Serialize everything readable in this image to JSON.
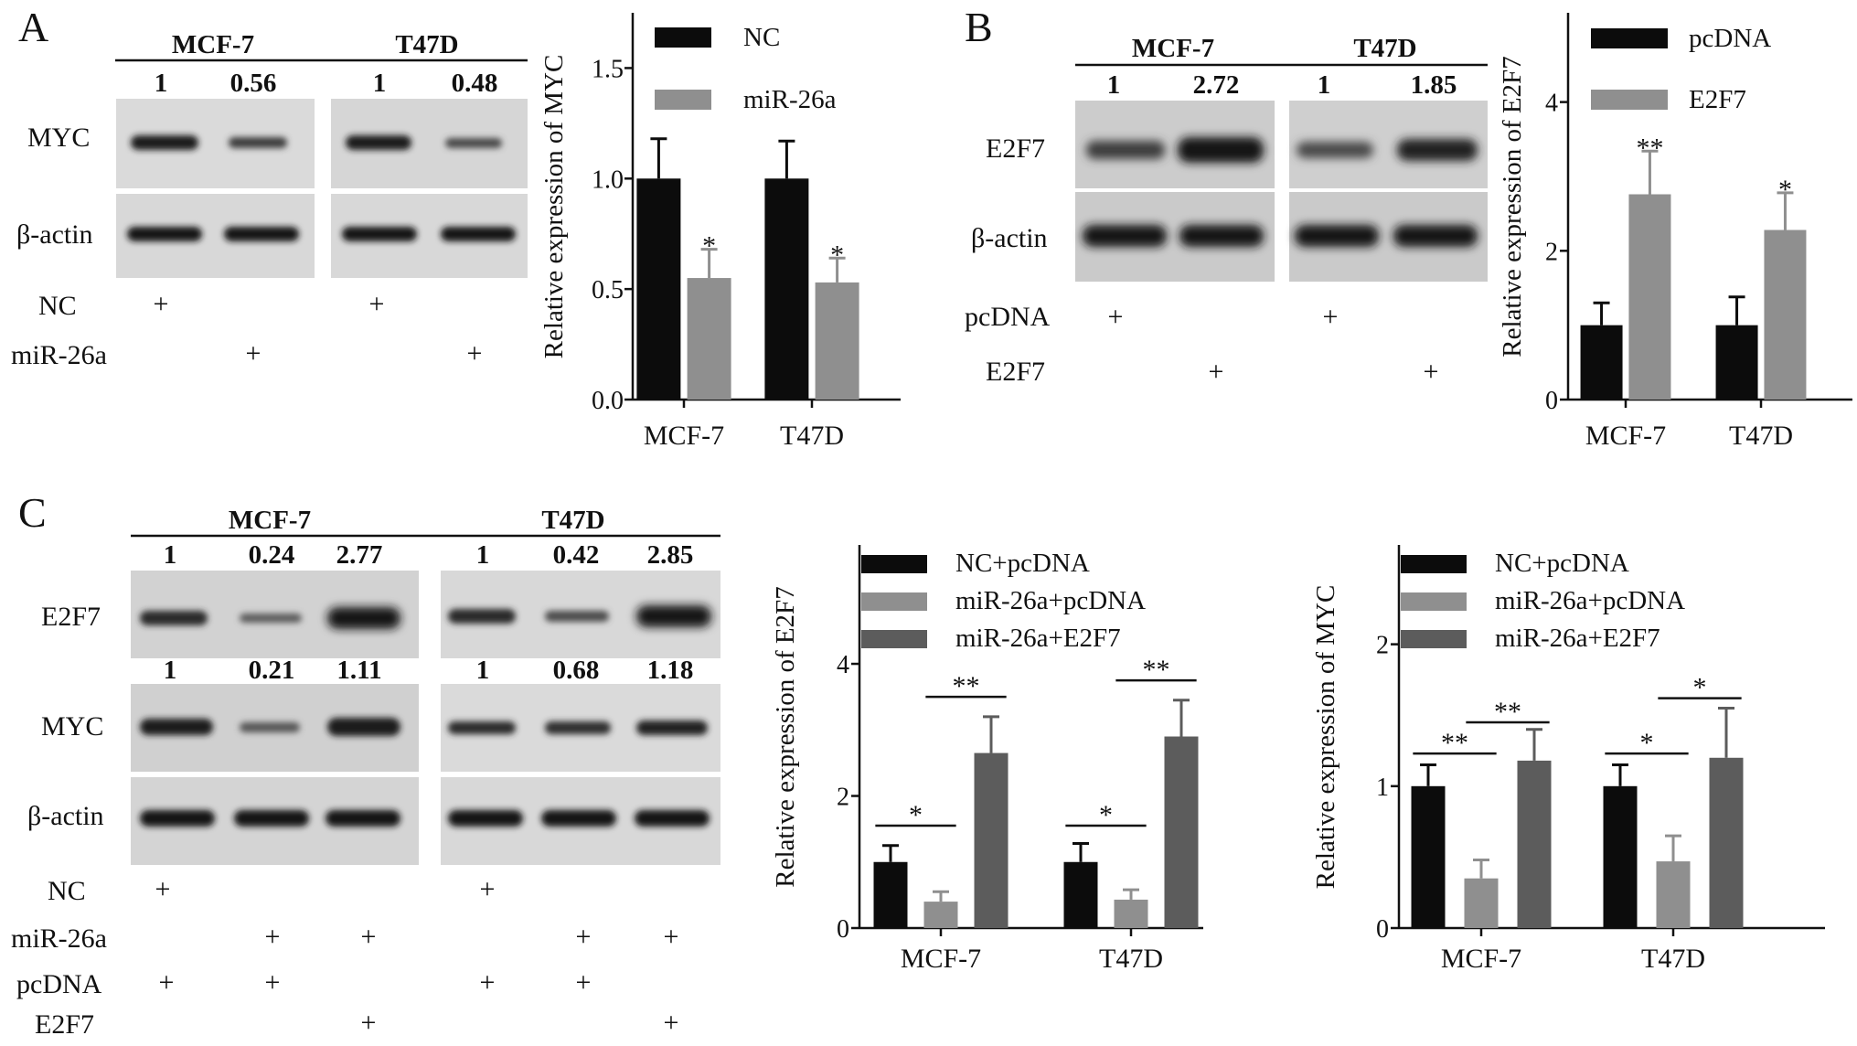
{
  "colors": {
    "black": "#0c0c0c",
    "light_gray": "#8f8f8f",
    "dark_gray": "#5c5c5c",
    "axis": "#111111"
  },
  "panels": {
    "A": {
      "letter": "A",
      "blot": {
        "cell_lines": [
          "MCF-7",
          "T47D"
        ],
        "ratios": [
          "1",
          "0.56",
          "1",
          "0.48"
        ],
        "rows": [
          "MYC",
          "β-actin"
        ],
        "treatments": [
          {
            "label": "NC",
            "marks": [
              true,
              false,
              true,
              false
            ]
          },
          {
            "label": "miR-26a",
            "marks": [
              false,
              true,
              false,
              true
            ]
          }
        ],
        "plus_symbol": "+"
      }
    },
    "B": {
      "letter": "B",
      "blot": {
        "cell_lines": [
          "MCF-7",
          "T47D"
        ],
        "ratios": [
          "1",
          "2.72",
          "1",
          "1.85"
        ],
        "rows": [
          "E2F7",
          "β-actin"
        ],
        "treatments": [
          {
            "label": "pcDNA",
            "marks": [
              true,
              false,
              true,
              false
            ]
          },
          {
            "label": "E2F7",
            "marks": [
              false,
              true,
              false,
              true
            ]
          }
        ],
        "plus_symbol": "+"
      }
    },
    "C": {
      "letter": "C",
      "blot": {
        "cell_lines": [
          "MCF-7",
          "T47D"
        ],
        "e2f7_ratios": [
          "1",
          "0.24",
          "2.77",
          "1",
          "0.42",
          "2.85"
        ],
        "myc_ratios": [
          "1",
          "0.21",
          "1.11",
          "1",
          "0.68",
          "1.18"
        ],
        "rows": [
          "E2F7",
          "MYC",
          "β-actin"
        ],
        "treatments": [
          {
            "label": "NC",
            "marks": [
              true,
              false,
              false,
              true,
              false,
              false
            ]
          },
          {
            "label": "miR-26a",
            "marks": [
              false,
              true,
              true,
              false,
              true,
              true
            ]
          },
          {
            "label": "pcDNA",
            "marks": [
              true,
              true,
              false,
              true,
              true,
              false
            ]
          },
          {
            "label": "E2F7",
            "marks": [
              false,
              false,
              true,
              false,
              false,
              true
            ]
          }
        ],
        "plus_symbol": "+"
      }
    }
  },
  "chart_data": [
    {
      "id": "A",
      "type": "bar",
      "categories": [
        "MCF-7",
        "T47D"
      ],
      "ylabel": "Relative expression of MYC",
      "ylim": [
        0,
        1.75
      ],
      "yticks": [
        0.0,
        0.5,
        1.0,
        1.5
      ],
      "ytick_labels": [
        "0.0",
        "0.5",
        "1.0",
        "1.5"
      ],
      "legend_position": "top-right",
      "series": [
        {
          "name": "NC",
          "color": "#0c0c0c",
          "values": [
            1.0,
            1.0
          ],
          "errors": [
            0.18,
            0.17
          ]
        },
        {
          "name": "miR-26a",
          "color": "#8f8f8f",
          "values": [
            0.55,
            0.53
          ],
          "errors": [
            0.13,
            0.11
          ]
        }
      ],
      "significance": [
        {
          "category": 0,
          "series": 1,
          "label": "*"
        },
        {
          "category": 1,
          "series": 1,
          "label": "*"
        }
      ],
      "brackets": []
    },
    {
      "id": "B",
      "type": "bar",
      "categories": [
        "MCF-7",
        "T47D"
      ],
      "ylabel": "Relative expression of E2F7",
      "ylim": [
        0,
        5.2
      ],
      "yticks": [
        0,
        2,
        4
      ],
      "ytick_labels": [
        "0",
        "2",
        "4"
      ],
      "legend_position": "top-right",
      "series": [
        {
          "name": "pcDNA",
          "color": "#0c0c0c",
          "values": [
            1.0,
            1.0
          ],
          "errors": [
            0.3,
            0.38
          ]
        },
        {
          "name": "E2F7",
          "color": "#8f8f8f",
          "values": [
            2.76,
            2.28
          ],
          "errors": [
            0.58,
            0.5
          ]
        }
      ],
      "significance": [
        {
          "category": 0,
          "series": 1,
          "label": "**"
        },
        {
          "category": 1,
          "series": 1,
          "label": "*"
        }
      ],
      "brackets": []
    },
    {
      "id": "C-E2F7",
      "type": "bar",
      "categories": [
        "MCF-7",
        "T47D"
      ],
      "ylabel": "Relative expression of E2F7",
      "ylim": [
        0,
        5.8
      ],
      "yticks": [
        0,
        2,
        4
      ],
      "ytick_labels": [
        "0",
        "2",
        "4"
      ],
      "legend_position": "top-left",
      "series": [
        {
          "name": "NC+pcDNA",
          "color": "#0c0c0c",
          "values": [
            1.0,
            1.0
          ],
          "errors": [
            0.25,
            0.28
          ]
        },
        {
          "name": "miR-26a+pcDNA",
          "color": "#8f8f8f",
          "values": [
            0.4,
            0.43
          ],
          "errors": [
            0.15,
            0.15
          ]
        },
        {
          "name": "miR-26a+E2F7",
          "color": "#5c5c5c",
          "values": [
            2.65,
            2.9
          ],
          "errors": [
            0.55,
            0.55
          ]
        }
      ],
      "significance": [],
      "brackets": [
        {
          "category": 0,
          "from": 0,
          "to": 1,
          "label": "*",
          "y": 1.55
        },
        {
          "category": 0,
          "from": 1,
          "to": 2,
          "label": "**",
          "y": 3.5
        },
        {
          "category": 1,
          "from": 0,
          "to": 1,
          "label": "*",
          "y": 1.55
        },
        {
          "category": 1,
          "from": 1,
          "to": 2,
          "label": "**",
          "y": 3.75
        }
      ]
    },
    {
      "id": "C-MYC",
      "type": "bar",
      "categories": [
        "MCF-7",
        "T47D"
      ],
      "ylabel": "Relative expression of MYC",
      "ylim": [
        0,
        2.7
      ],
      "yticks": [
        0,
        1,
        2
      ],
      "ytick_labels": [
        "0",
        "1",
        "2"
      ],
      "legend_position": "top-left",
      "series": [
        {
          "name": "NC+pcDNA",
          "color": "#0c0c0c",
          "values": [
            1.0,
            1.0
          ],
          "errors": [
            0.15,
            0.15
          ]
        },
        {
          "name": "miR-26a+pcDNA",
          "color": "#8f8f8f",
          "values": [
            0.35,
            0.47
          ],
          "errors": [
            0.13,
            0.18
          ]
        },
        {
          "name": "miR-26a+E2F7",
          "color": "#5c5c5c",
          "values": [
            1.18,
            1.2
          ],
          "errors": [
            0.22,
            0.35
          ]
        }
      ],
      "significance": [],
      "brackets": [
        {
          "category": 0,
          "from": 0,
          "to": 1,
          "label": "**",
          "y": 1.23
        },
        {
          "category": 0,
          "from": 1,
          "to": 2,
          "label": "**",
          "y": 1.45
        },
        {
          "category": 1,
          "from": 0,
          "to": 1,
          "label": "*",
          "y": 1.23
        },
        {
          "category": 1,
          "from": 1,
          "to": 2,
          "label": "*",
          "y": 1.62
        }
      ]
    }
  ]
}
